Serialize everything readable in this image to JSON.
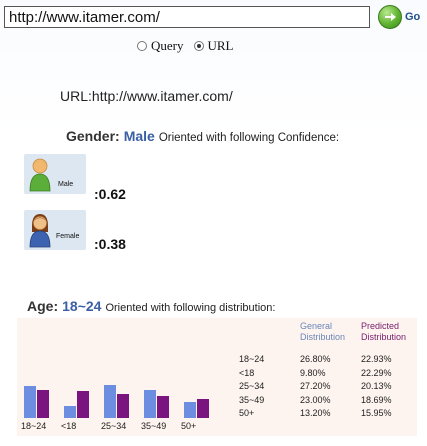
{
  "search": {
    "value": "http://www.itamer.com/",
    "go_label": "Go"
  },
  "mode": {
    "options": [
      {
        "label": "Query",
        "checked": false
      },
      {
        "label": "URL",
        "checked": true
      }
    ]
  },
  "url_line": {
    "label": "URL:",
    "value": "http://www.itamer.com/"
  },
  "gender": {
    "label": "Gender:",
    "value": "Male",
    "text": "Oriented with following Confidence:",
    "male": {
      "label": "Male",
      "score": ":0.62"
    },
    "female": {
      "label": "Female",
      "score": ":0.38"
    }
  },
  "age": {
    "label": "Age:",
    "value": "18~24",
    "text": "Oriented with following distribution:",
    "general_header": [
      "General",
      "Distribution"
    ],
    "predicted_header": [
      "Predicted",
      "Distribution"
    ],
    "rows": [
      {
        "range": "18~24",
        "general": "26.80%",
        "predicted": "22.93%"
      },
      {
        "range": "<18",
        "general": "9.80%",
        "predicted": "22.29%"
      },
      {
        "range": "25~34",
        "general": "27.20%",
        "predicted": "20.13%"
      },
      {
        "range": "35~49",
        "general": "23.00%",
        "predicted": "18.69%"
      },
      {
        "range": "50+",
        "general": "13.20%",
        "predicted": "15.95%"
      }
    ]
  },
  "chart_data": {
    "type": "bar",
    "categories": [
      "18~24",
      "<18",
      "25~34",
      "35~49",
      "50+"
    ],
    "series": [
      {
        "values": [
          26.8,
          9.8,
          27.2,
          23.0,
          13.2
        ]
      },
      {
        "values": [
          22.93,
          22.29,
          20.13,
          18.69,
          15.95
        ]
      }
    ],
    "colors": {
      "general": "#6c8de0",
      "predicted": "#7a1580"
    },
    "ylim": [
      0,
      30
    ]
  }
}
